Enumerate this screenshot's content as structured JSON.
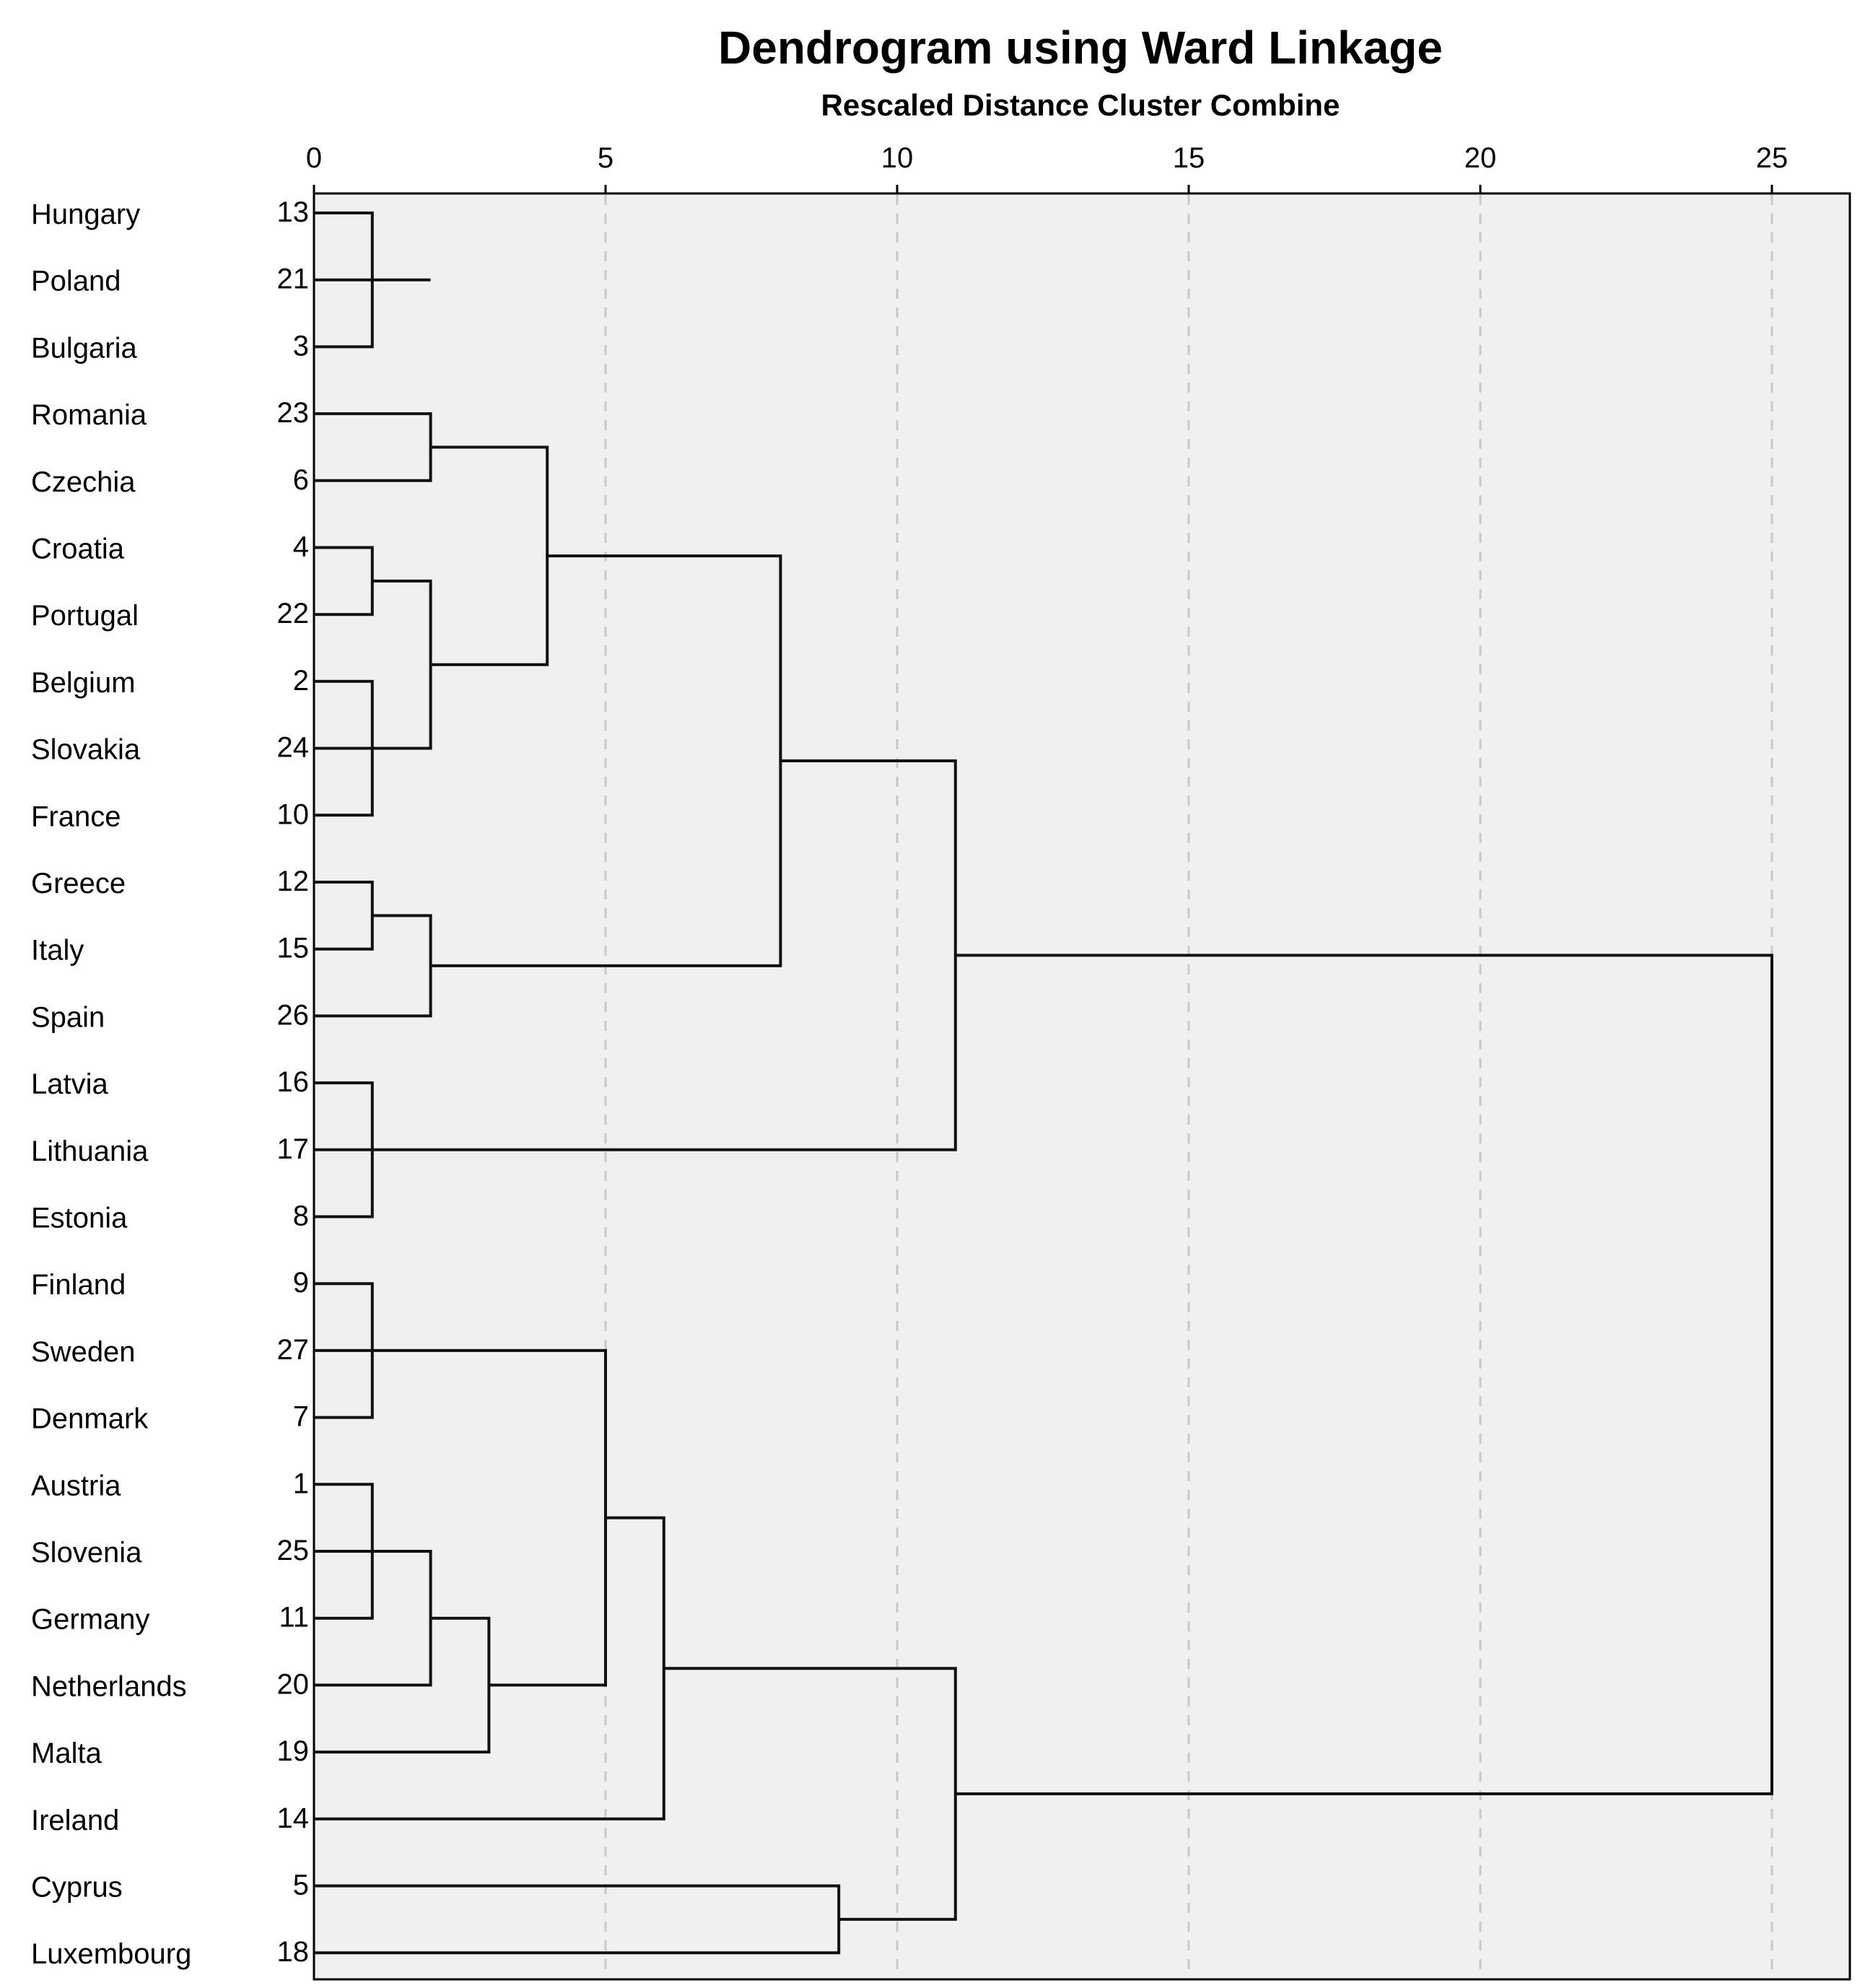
{
  "chart_data": {
    "type": "dendrogram",
    "title": "Dendrogram using Ward Linkage",
    "subtitle": "Rescaled Distance Cluster Combine",
    "xlim": [
      0,
      25
    ],
    "x_ticks": [
      "0",
      "5",
      "10",
      "15",
      "20",
      "25"
    ],
    "grid": "vertical dashed",
    "leaves": [
      {
        "name": "Hungary",
        "id": "13"
      },
      {
        "name": "Poland",
        "id": "21"
      },
      {
        "name": "Bulgaria",
        "id": "3"
      },
      {
        "name": "Romania",
        "id": "23"
      },
      {
        "name": "Czechia",
        "id": "6"
      },
      {
        "name": "Croatia",
        "id": "4"
      },
      {
        "name": "Portugal",
        "id": "22"
      },
      {
        "name": "Belgium",
        "id": "2"
      },
      {
        "name": "Slovakia",
        "id": "24"
      },
      {
        "name": "France",
        "id": "10"
      },
      {
        "name": "Greece",
        "id": "12"
      },
      {
        "name": "Italy",
        "id": "15"
      },
      {
        "name": "Spain",
        "id": "26"
      },
      {
        "name": "Latvia",
        "id": "16"
      },
      {
        "name": "Lithuania",
        "id": "17"
      },
      {
        "name": "Estonia",
        "id": "8"
      },
      {
        "name": "Finland",
        "id": "9"
      },
      {
        "name": "Sweden",
        "id": "27"
      },
      {
        "name": "Denmark",
        "id": "7"
      },
      {
        "name": "Austria",
        "id": "1"
      },
      {
        "name": "Slovenia",
        "id": "25"
      },
      {
        "name": "Germany",
        "id": "11"
      },
      {
        "name": "Netherlands",
        "id": "20"
      },
      {
        "name": "Malta",
        "id": "19"
      },
      {
        "name": "Ireland",
        "id": "14"
      },
      {
        "name": "Cyprus",
        "id": "5"
      },
      {
        "name": "Luxembourg",
        "id": "18"
      }
    ],
    "merges": [
      {
        "id": "A",
        "children": [
          "L0",
          "L2"
        ],
        "height": 1
      },
      {
        "id": "B",
        "children": [
          "L1",
          "A"
        ],
        "height": 2
      },
      {
        "id": "C",
        "children": [
          "L3",
          "L4"
        ],
        "height": 2
      },
      {
        "id": "D",
        "children": [
          "L5",
          "L6"
        ],
        "height": 1
      },
      {
        "id": "E",
        "children": [
          "L7",
          "L9"
        ],
        "height": 1
      },
      {
        "id": "F",
        "children": [
          "L8",
          "E"
        ],
        "height": 1
      },
      {
        "id": "G",
        "children": [
          "D",
          "F"
        ],
        "height": 2
      },
      {
        "id": "H",
        "children": [
          "C",
          "G"
        ],
        "height": 4
      },
      {
        "id": "I",
        "children": [
          "L10",
          "L11"
        ],
        "height": 1
      },
      {
        "id": "J",
        "children": [
          "I",
          "L12"
        ],
        "height": 2
      },
      {
        "id": "K",
        "children": [
          "H",
          "J"
        ],
        "height": 8
      },
      {
        "id": "M",
        "children": [
          "L13",
          "L15"
        ],
        "height": 1
      },
      {
        "id": "N",
        "children": [
          "L14",
          "M"
        ],
        "height": 1
      },
      {
        "id": "O",
        "children": [
          "K",
          "N"
        ],
        "height": 11
      },
      {
        "id": "P",
        "children": [
          "L16",
          "L18"
        ],
        "height": 1
      },
      {
        "id": "Q",
        "children": [
          "L17",
          "P"
        ],
        "height": 1
      },
      {
        "id": "R",
        "children": [
          "L19",
          "L21"
        ],
        "height": 1
      },
      {
        "id": "S",
        "children": [
          "L20",
          "R"
        ],
        "height": 1
      },
      {
        "id": "T",
        "children": [
          "S",
          "L22"
        ],
        "height": 2
      },
      {
        "id": "U",
        "children": [
          "T",
          "L23"
        ],
        "height": 3
      },
      {
        "id": "V",
        "children": [
          "Q",
          "U"
        ],
        "height": 5
      },
      {
        "id": "W",
        "children": [
          "V",
          "L24"
        ],
        "height": 6
      },
      {
        "id": "X",
        "children": [
          "L25",
          "L26"
        ],
        "height": 9
      },
      {
        "id": "Y",
        "children": [
          "W",
          "X"
        ],
        "height": 11
      },
      {
        "id": "Z",
        "children": [
          "O",
          "Y"
        ],
        "height": 25
      }
    ]
  }
}
